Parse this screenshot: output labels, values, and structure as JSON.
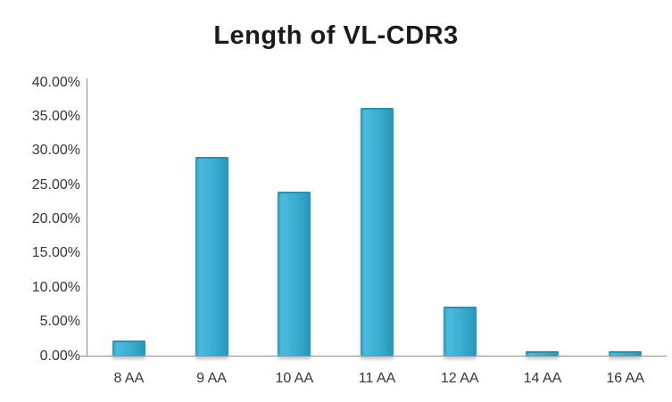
{
  "colors": {
    "background": "#ffffff",
    "title_text": "#1a1a1a",
    "label_text": "#363636",
    "axis_line": "#8e8e8e",
    "bar_main": "#3aadd2",
    "bar_light": "#4cbadd",
    "bar_dark": "#2a95b8",
    "bar_top_edge": "#2791b4"
  },
  "chart_data": {
    "type": "bar",
    "title": "Length of VL-CDR3",
    "categories": [
      "8 AA",
      "9 AA",
      "10 AA",
      "11 AA",
      "12 AA",
      "14 AA",
      "16 AA"
    ],
    "values": [
      2.2,
      29.0,
      24.0,
      36.2,
      7.2,
      0.7,
      0.7
    ],
    "xlabel": "",
    "ylabel": "",
    "ylim": [
      0,
      40
    ],
    "ytick_step": 5,
    "ytick_labels": [
      "0.00%",
      "5.00%",
      "10.00%",
      "15.00%",
      "20.00%",
      "25.00%",
      "30.00%",
      "35.00%",
      "40.00%"
    ],
    "grid": false,
    "legend": false,
    "bar_color": "#3aadd2"
  }
}
